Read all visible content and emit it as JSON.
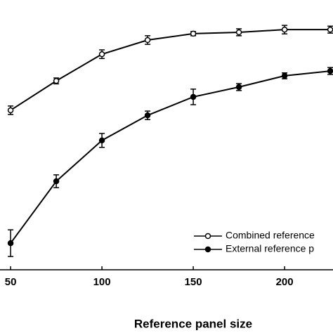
{
  "chart_data": {
    "type": "line",
    "x_label": "Reference panel size",
    "x": [
      50,
      75,
      100,
      125,
      150,
      175,
      200,
      225
    ],
    "xlim": [
      44.2,
      226.5
    ],
    "xticks": [
      50,
      100,
      150,
      200
    ],
    "ylim": [
      0,
      100
    ],
    "legend": "lower right",
    "series": [
      {
        "name": "Combined reference",
        "color": "#000000",
        "marker": "open",
        "values": [
          58.7,
          69.7,
          79.7,
          85.0,
          87.4,
          87.9,
          88.9,
          88.9
        ],
        "errors": [
          1.6,
          1.1,
          1.6,
          1.6,
          0.8,
          1.3,
          1.6,
          1.3
        ]
      },
      {
        "name": "External reference p",
        "color": "#000000",
        "marker": "filled",
        "values": [
          8.9,
          32.1,
          47.4,
          56.8,
          63.7,
          67.4,
          71.6,
          73.4
        ],
        "errors": [
          5.0,
          2.4,
          2.6,
          1.6,
          2.9,
          1.3,
          1.1,
          1.3
        ]
      }
    ]
  }
}
